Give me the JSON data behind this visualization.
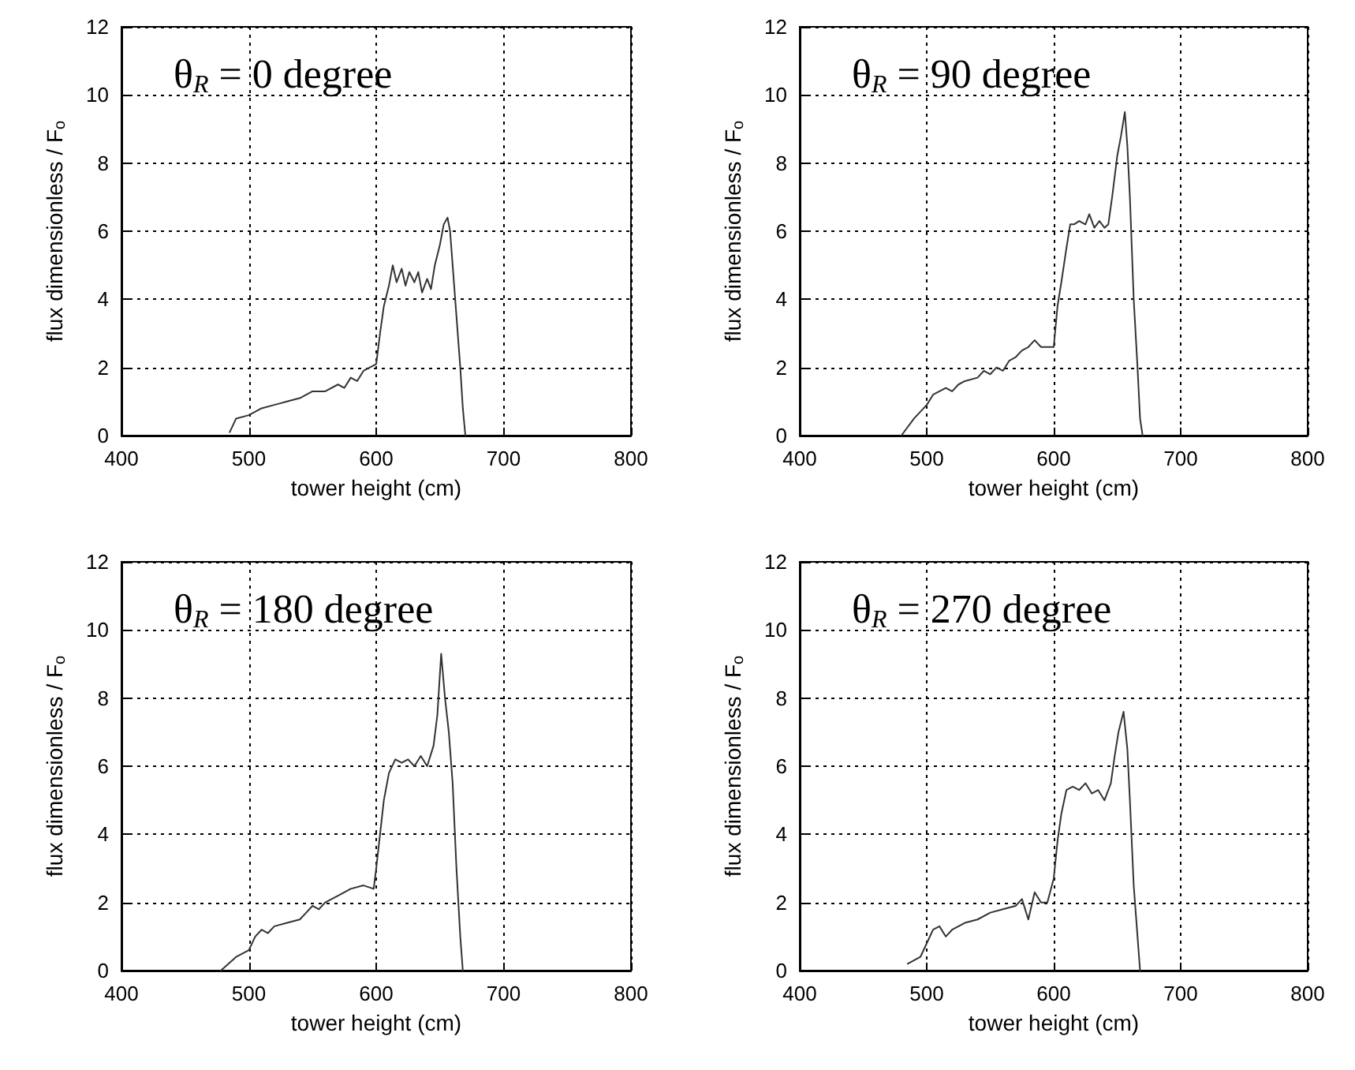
{
  "chart_data": [
    {
      "type": "line",
      "xlabel": "tower height (cm)",
      "ylabel": "flux dimensionless / F$_{o}$",
      "annotations": [
        "θ$_{R}$ = 0 degree"
      ],
      "xlim": [
        400,
        800
      ],
      "xticks": [
        400,
        500,
        600,
        700,
        800
      ],
      "ylim": [
        0,
        12
      ],
      "yticks": [
        0,
        2,
        4,
        6,
        8,
        10,
        12
      ],
      "grid": true,
      "marker": "none",
      "line_style": "solid",
      "series": [
        {
          "color": "#333333",
          "x": [
            485,
            490,
            500,
            510,
            520,
            530,
            540,
            550,
            560,
            570,
            575,
            580,
            585,
            590,
            595,
            600,
            603,
            606,
            610,
            613,
            616,
            620,
            623,
            626,
            630,
            633,
            636,
            640,
            643,
            646,
            650,
            653,
            656,
            658,
            660,
            663,
            666,
            668,
            670
          ],
          "values": [
            0.1,
            0.5,
            0.6,
            0.8,
            0.9,
            1.0,
            1.1,
            1.3,
            1.3,
            1.5,
            1.4,
            1.7,
            1.6,
            1.9,
            2.0,
            2.1,
            3.0,
            3.8,
            4.4,
            5.0,
            4.5,
            4.9,
            4.4,
            4.8,
            4.5,
            4.8,
            4.2,
            4.6,
            4.3,
            5.0,
            5.6,
            6.2,
            6.4,
            6.0,
            5.0,
            3.5,
            2.0,
            0.8,
            0
          ]
        }
      ]
    },
    {
      "type": "line",
      "xlabel": "tower height (cm)",
      "ylabel": "flux dimensionless / F$_{o}$",
      "annotations": [
        "θ$_{R}$ = 90 degree"
      ],
      "xlim": [
        400,
        800
      ],
      "xticks": [
        400,
        500,
        600,
        700,
        800
      ],
      "ylim": [
        0,
        12
      ],
      "yticks": [
        0,
        2,
        4,
        6,
        8,
        10,
        12
      ],
      "grid": true,
      "marker": "none",
      "line_style": "solid",
      "series": [
        {
          "color": "#333333",
          "x": [
            480,
            490,
            500,
            505,
            510,
            515,
            520,
            525,
            530,
            540,
            545,
            550,
            555,
            560,
            565,
            570,
            575,
            580,
            585,
            590,
            595,
            600,
            603,
            606,
            610,
            613,
            616,
            620,
            625,
            628,
            632,
            636,
            640,
            643,
            646,
            650,
            653,
            656,
            658,
            660,
            663,
            666,
            668,
            670
          ],
          "values": [
            0,
            0.5,
            0.9,
            1.2,
            1.3,
            1.4,
            1.3,
            1.5,
            1.6,
            1.7,
            1.9,
            1.8,
            2.0,
            1.9,
            2.2,
            2.3,
            2.5,
            2.6,
            2.8,
            2.6,
            2.6,
            2.6,
            3.8,
            4.5,
            5.5,
            6.2,
            6.2,
            6.3,
            6.2,
            6.5,
            6.1,
            6.3,
            6.1,
            6.2,
            7.0,
            8.2,
            8.8,
            9.5,
            8.5,
            7.0,
            4.0,
            2.0,
            0.5,
            0
          ]
        }
      ]
    },
    {
      "type": "line",
      "xlabel": "tower height (cm)",
      "ylabel": "flux dimensionless / F$_{o}$",
      "annotations": [
        "θ$_{R}$ = 180 degree"
      ],
      "xlim": [
        400,
        800
      ],
      "xticks": [
        400,
        500,
        600,
        700,
        800
      ],
      "ylim": [
        0,
        12
      ],
      "yticks": [
        0,
        2,
        4,
        6,
        8,
        10,
        12
      ],
      "grid": true,
      "marker": "none",
      "line_style": "solid",
      "series": [
        {
          "color": "#333333",
          "x": [
            478,
            490,
            500,
            505,
            510,
            515,
            520,
            530,
            540,
            545,
            550,
            555,
            560,
            570,
            580,
            590,
            598,
            600,
            603,
            606,
            610,
            615,
            620,
            625,
            630,
            635,
            640,
            645,
            648,
            651,
            654,
            657,
            660,
            663,
            666,
            668
          ],
          "values": [
            0,
            0.4,
            0.6,
            1.0,
            1.2,
            1.1,
            1.3,
            1.4,
            1.5,
            1.7,
            1.9,
            1.8,
            2.0,
            2.2,
            2.4,
            2.5,
            2.4,
            3.0,
            4.0,
            5.0,
            5.8,
            6.2,
            6.1,
            6.2,
            6.0,
            6.3,
            6.0,
            6.6,
            7.5,
            9.3,
            8.0,
            7.0,
            5.5,
            3.0,
            1.0,
            0
          ]
        }
      ]
    },
    {
      "type": "line",
      "xlabel": "tower height (cm)",
      "ylabel": "flux dimensionless / F$_{o}$",
      "annotations": [
        "θ$_{R}$ = 270 degree"
      ],
      "xlim": [
        400,
        800
      ],
      "xticks": [
        400,
        500,
        600,
        700,
        800
      ],
      "ylim": [
        0,
        12
      ],
      "yticks": [
        0,
        2,
        4,
        6,
        8,
        10,
        12
      ],
      "grid": true,
      "marker": "none",
      "line_style": "solid",
      "series": [
        {
          "color": "#333333",
          "x": [
            485,
            495,
            500,
            505,
            510,
            515,
            520,
            530,
            540,
            550,
            560,
            570,
            575,
            580,
            585,
            590,
            595,
            600,
            603,
            606,
            610,
            615,
            620,
            625,
            630,
            635,
            640,
            645,
            648,
            651,
            655,
            658,
            660,
            663,
            666,
            668
          ],
          "values": [
            0.2,
            0.4,
            0.8,
            1.2,
            1.3,
            1.0,
            1.2,
            1.4,
            1.5,
            1.7,
            1.8,
            1.9,
            2.1,
            1.5,
            2.3,
            2.0,
            2.0,
            2.7,
            3.8,
            4.6,
            5.3,
            5.4,
            5.3,
            5.5,
            5.2,
            5.3,
            5.0,
            5.5,
            6.3,
            7.0,
            7.6,
            6.5,
            5.0,
            2.5,
            1.0,
            0
          ]
        }
      ]
    }
  ]
}
